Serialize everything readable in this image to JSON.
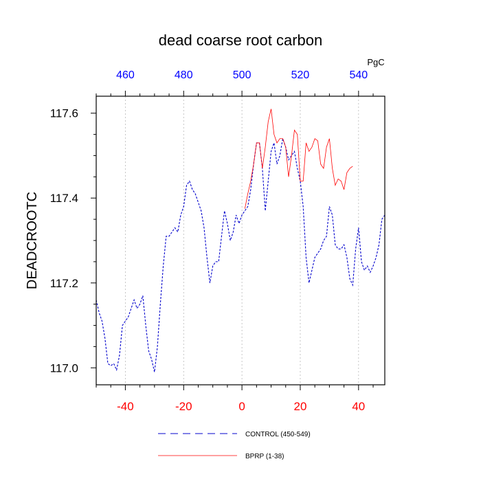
{
  "chart_data": {
    "type": "line",
    "title": "dead coarse root carbon",
    "ylabel": "DEADCROOTC",
    "top_axis_unit": "PgC",
    "xlim": [
      -50,
      49
    ],
    "ylim": [
      116.96,
      117.64
    ],
    "grid": "vertical dotted lines at bottom ticks",
    "bottom_ticks": [
      -40,
      -20,
      0,
      20,
      40
    ],
    "bottom_tick_color": "#ff0000",
    "top_ticks": [
      {
        "label": "460",
        "x": -40
      },
      {
        "label": "480",
        "x": -20
      },
      {
        "label": "500",
        "x": 0
      },
      {
        "label": "520",
        "x": 20
      },
      {
        "label": "540",
        "x": 40
      }
    ],
    "top_tick_color": "#0000ff",
    "y_ticks": [
      "117.0",
      "117.2",
      "117.4",
      "117.6"
    ],
    "legend_placement": "bottom-center",
    "series": [
      {
        "name": "CONTROL (450-549)",
        "color": "#0000cc",
        "style": "dashed",
        "x": [
          -50,
          -49,
          -48,
          -47,
          -46,
          -45,
          -44,
          -43,
          -42,
          -41,
          -40,
          -39,
          -38,
          -37,
          -36,
          -35,
          -34,
          -33,
          -32,
          -31,
          -30,
          -29,
          -28,
          -27,
          -26,
          -25,
          -24,
          -23,
          -22,
          -21,
          -20,
          -19,
          -18,
          -17,
          -16,
          -15,
          -14,
          -13,
          -12,
          -11,
          -10,
          -9,
          -8,
          -7,
          -6,
          -5,
          -4,
          -3,
          -2,
          -1,
          0,
          1,
          2,
          3,
          4,
          5,
          6,
          7,
          8,
          9,
          10,
          11,
          12,
          13,
          14,
          15,
          16,
          17,
          18,
          19,
          20,
          21,
          22,
          23,
          24,
          25,
          26,
          27,
          28,
          29,
          30,
          31,
          32,
          33,
          34,
          35,
          36,
          37,
          38,
          39,
          40,
          41,
          42,
          43,
          44,
          45,
          46,
          47,
          48,
          49
        ],
        "y": [
          117.16,
          117.13,
          117.11,
          117.07,
          117.01,
          117.005,
          117.01,
          116.995,
          117.03,
          117.1,
          117.11,
          117.12,
          117.14,
          117.16,
          117.14,
          117.15,
          117.17,
          117.1,
          117.04,
          117.02,
          116.99,
          117.05,
          117.15,
          117.24,
          117.31,
          117.31,
          117.32,
          117.33,
          117.32,
          117.36,
          117.38,
          117.43,
          117.44,
          117.42,
          117.41,
          117.39,
          117.37,
          117.33,
          117.26,
          117.2,
          117.24,
          117.25,
          117.25,
          117.31,
          117.37,
          117.34,
          117.3,
          117.32,
          117.36,
          117.34,
          117.36,
          117.37,
          117.38,
          117.42,
          117.48,
          117.53,
          117.53,
          117.47,
          117.37,
          117.44,
          117.51,
          117.53,
          117.48,
          117.5,
          117.54,
          117.52,
          117.49,
          117.5,
          117.51,
          117.47,
          117.44,
          117.38,
          117.26,
          117.2,
          117.23,
          117.26,
          117.27,
          117.28,
          117.3,
          117.31,
          117.38,
          117.36,
          117.29,
          117.28,
          117.28,
          117.29,
          117.26,
          117.21,
          117.195,
          117.28,
          117.33,
          117.25,
          117.23,
          117.24,
          117.225,
          117.24,
          117.26,
          117.29,
          117.35,
          117.36
        ]
      },
      {
        "name": "BPRP (1-38)",
        "color": "#ff0000",
        "style": "solid",
        "x": [
          1,
          2,
          3,
          4,
          5,
          6,
          7,
          8,
          9,
          10,
          11,
          12,
          13,
          14,
          15,
          16,
          17,
          18,
          19,
          20,
          21,
          22,
          23,
          24,
          25,
          26,
          27,
          28,
          29,
          30,
          31,
          32,
          33,
          34,
          35,
          36,
          37,
          38
        ],
        "y": [
          117.375,
          117.41,
          117.44,
          117.48,
          117.53,
          117.53,
          117.47,
          117.52,
          117.58,
          117.61,
          117.55,
          117.53,
          117.54,
          117.54,
          117.52,
          117.45,
          117.5,
          117.56,
          117.55,
          117.44,
          117.44,
          117.53,
          117.51,
          117.52,
          117.54,
          117.535,
          117.48,
          117.47,
          117.52,
          117.54,
          117.47,
          117.43,
          117.445,
          117.44,
          117.42,
          117.46,
          117.47,
          117.475
        ]
      }
    ]
  }
}
